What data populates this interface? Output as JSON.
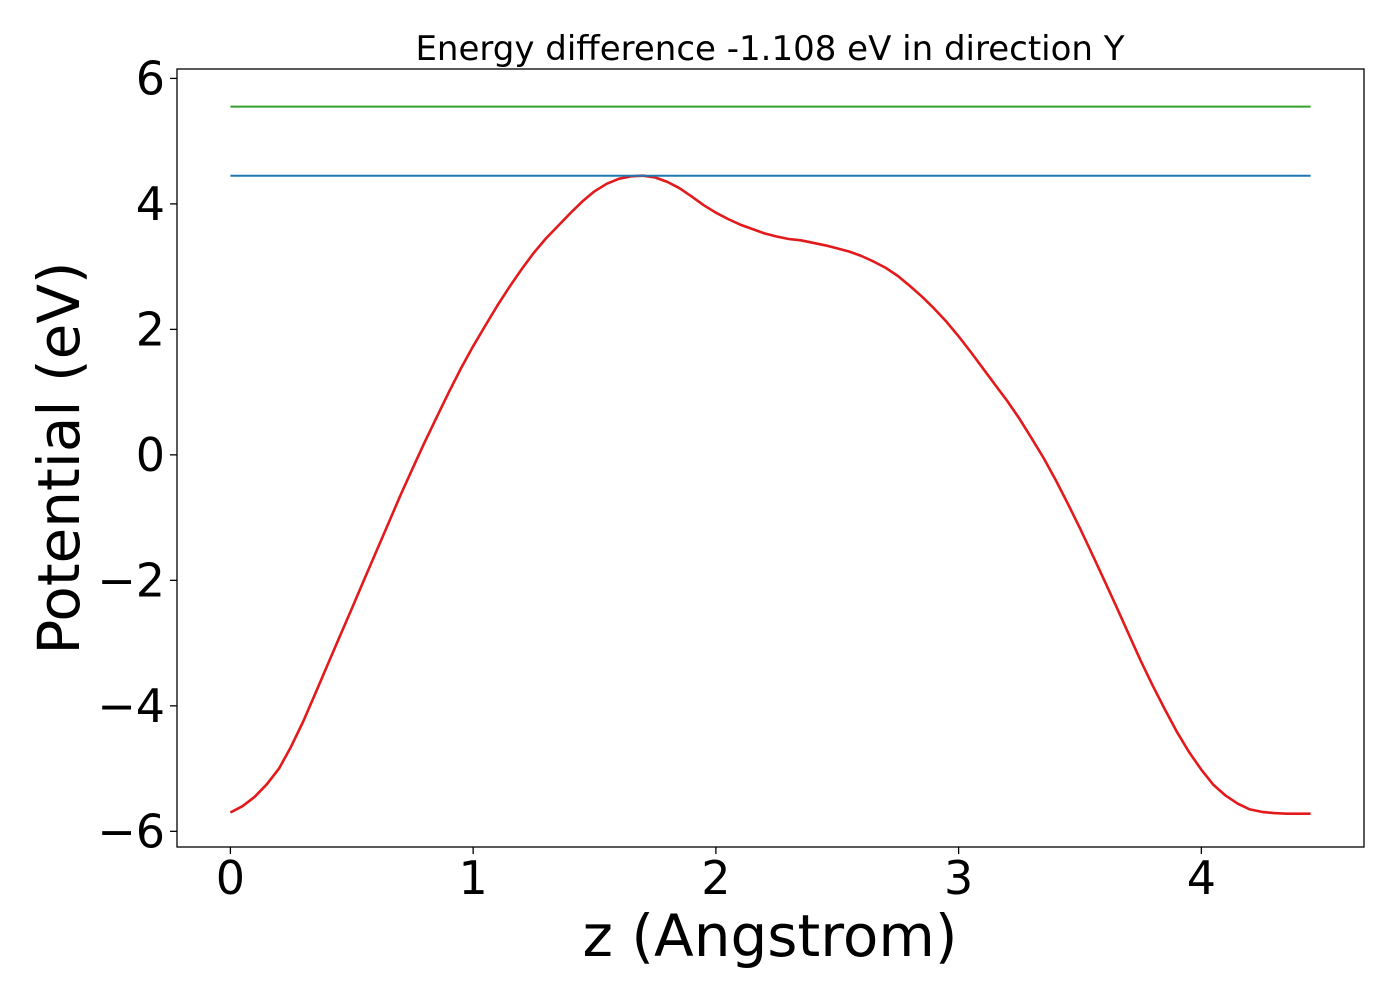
{
  "chart_data": {
    "type": "line",
    "title": "Energy difference -1.108 eV in direction Y",
    "xlabel": "z (Angstrom)",
    "ylabel": "Potential (eV)",
    "xlim": [
      -0.22,
      4.67
    ],
    "ylim": [
      -6.25,
      6.15
    ],
    "x_ticks": [
      0,
      1,
      2,
      3,
      4
    ],
    "x_tick_labels": [
      "0",
      "1",
      "2",
      "3",
      "4"
    ],
    "y_ticks": [
      -6,
      -4,
      -2,
      0,
      2,
      4,
      6
    ],
    "y_tick_labels": [
      "−6",
      "−4",
      "−2",
      "0",
      "2",
      "4",
      "6"
    ],
    "grid": false,
    "legend": "none",
    "colors": {
      "potential": "#e31a1c",
      "top_level": "#33a02c",
      "barrier_level": "#1f78b4"
    },
    "series": [
      {
        "key": "potential",
        "x": [
          0.0,
          0.05,
          0.1,
          0.15,
          0.2,
          0.25,
          0.3,
          0.35,
          0.4,
          0.45,
          0.5,
          0.55,
          0.6,
          0.65,
          0.7,
          0.75,
          0.8,
          0.85,
          0.9,
          0.95,
          1.0,
          1.05,
          1.1,
          1.15,
          1.2,
          1.25,
          1.3,
          1.35,
          1.4,
          1.45,
          1.5,
          1.55,
          1.6,
          1.65,
          1.7,
          1.75,
          1.8,
          1.85,
          1.9,
          1.95,
          2.0,
          2.05,
          2.1,
          2.15,
          2.2,
          2.25,
          2.3,
          2.35,
          2.4,
          2.45,
          2.5,
          2.55,
          2.6,
          2.65,
          2.7,
          2.75,
          2.8,
          2.85,
          2.9,
          2.95,
          3.0,
          3.05,
          3.1,
          3.15,
          3.2,
          3.25,
          3.3,
          3.35,
          3.4,
          3.45,
          3.5,
          3.55,
          3.6,
          3.65,
          3.7,
          3.75,
          3.8,
          3.85,
          3.9,
          3.95,
          4.0,
          4.05,
          4.1,
          4.15,
          4.2,
          4.25,
          4.3,
          4.35,
          4.4,
          4.45
        ],
        "y": [
          -5.7,
          -5.6,
          -5.45,
          -5.25,
          -5.0,
          -4.65,
          -4.25,
          -3.8,
          -3.35,
          -2.9,
          -2.45,
          -2.0,
          -1.55,
          -1.1,
          -0.65,
          -0.22,
          0.2,
          0.6,
          1.0,
          1.38,
          1.73,
          2.06,
          2.38,
          2.68,
          2.96,
          3.22,
          3.45,
          3.65,
          3.85,
          4.04,
          4.2,
          4.32,
          4.4,
          4.44,
          4.45,
          4.42,
          4.35,
          4.25,
          4.12,
          3.98,
          3.86,
          3.76,
          3.67,
          3.6,
          3.53,
          3.48,
          3.44,
          3.42,
          3.38,
          3.34,
          3.29,
          3.24,
          3.17,
          3.08,
          2.98,
          2.85,
          2.69,
          2.52,
          2.33,
          2.12,
          1.89,
          1.64,
          1.38,
          1.12,
          0.86,
          0.58,
          0.27,
          -0.05,
          -0.4,
          -0.78,
          -1.17,
          -1.58,
          -2.0,
          -2.42,
          -2.85,
          -3.28,
          -3.68,
          -4.06,
          -4.42,
          -4.74,
          -5.02,
          -5.26,
          -5.43,
          -5.56,
          -5.65,
          -5.69,
          -5.71,
          -5.72,
          -5.72,
          -5.72
        ]
      },
      {
        "key": "top_level",
        "x": [
          0.0,
          4.45
        ],
        "y": [
          5.55,
          5.55
        ]
      },
      {
        "key": "barrier_level",
        "x": [
          0.0,
          4.45
        ],
        "y": [
          4.45,
          4.45
        ]
      }
    ]
  }
}
